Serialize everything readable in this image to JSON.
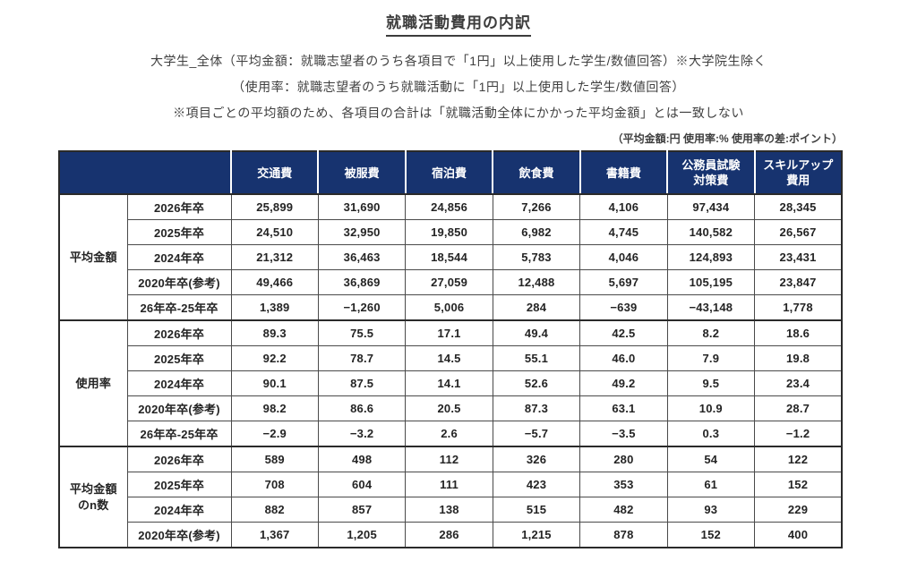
{
  "page": {
    "title": "就職活動費用の内訳",
    "subtitle_line1": "大学生_全体（平均金額：就職志望者のうち各項目で「1円」以上使用した学生/数値回答）※大学院生除く",
    "subtitle_line2": "（使用率：就職志望者のうち就職活動に「1円」以上使用した学生/数値回答）",
    "subtitle_line3": "※項目ごとの平均額のため、各項目の合計は「就職活動全体にかかった平均金額」とは一致しない",
    "units_note": "（平均金額:円  使用率:%  使用率の差:ポイント）"
  },
  "colors": {
    "header_bg": "#17336f",
    "header_text": "#ffffff",
    "outer_border": "#2a2a2a",
    "inner_border": "#4a4a4a"
  },
  "chart_data": {
    "type": "table",
    "columns": [
      "交通費",
      "被服費",
      "宿泊費",
      "飲食費",
      "書籍費",
      "公務員試験\n対策費",
      "スキルアップ\n費用"
    ],
    "row_groups": [
      {
        "label": "平均金額",
        "rows": [
          {
            "label": "2026年卒",
            "values": [
              "25,899",
              "31,690",
              "24,856",
              "7,266",
              "4,106",
              "97,434",
              "28,345"
            ]
          },
          {
            "label": "2025年卒",
            "values": [
              "24,510",
              "32,950",
              "19,850",
              "6,982",
              "4,745",
              "140,582",
              "26,567"
            ]
          },
          {
            "label": "2024年卒",
            "values": [
              "21,312",
              "36,463",
              "18,544",
              "5,783",
              "4,046",
              "124,893",
              "23,431"
            ]
          },
          {
            "label": "2020年卒(参考)",
            "values": [
              "49,466",
              "36,869",
              "27,059",
              "12,488",
              "5,697",
              "105,195",
              "23,847"
            ]
          },
          {
            "label": "26年卒-25年卒",
            "values": [
              "1,389",
              "−1,260",
              "5,006",
              "284",
              "−639",
              "−43,148",
              "1,778"
            ]
          }
        ]
      },
      {
        "label": "使用率",
        "rows": [
          {
            "label": "2026年卒",
            "values": [
              "89.3",
              "75.5",
              "17.1",
              "49.4",
              "42.5",
              "8.2",
              "18.6"
            ]
          },
          {
            "label": "2025年卒",
            "values": [
              "92.2",
              "78.7",
              "14.5",
              "55.1",
              "46.0",
              "7.9",
              "19.8"
            ]
          },
          {
            "label": "2024年卒",
            "values": [
              "90.1",
              "87.5",
              "14.1",
              "52.6",
              "49.2",
              "9.5",
              "23.4"
            ]
          },
          {
            "label": "2020年卒(参考)",
            "values": [
              "98.2",
              "86.6",
              "20.5",
              "87.3",
              "63.1",
              "10.9",
              "28.7"
            ]
          },
          {
            "label": "26年卒-25年卒",
            "values": [
              "−2.9",
              "−3.2",
              "2.6",
              "−5.7",
              "−3.5",
              "0.3",
              "−1.2"
            ]
          }
        ]
      },
      {
        "label": "平均金額\nのn数",
        "rows": [
          {
            "label": "2026年卒",
            "values": [
              "589",
              "498",
              "112",
              "326",
              "280",
              "54",
              "122"
            ]
          },
          {
            "label": "2025年卒",
            "values": [
              "708",
              "604",
              "111",
              "423",
              "353",
              "61",
              "152"
            ]
          },
          {
            "label": "2024年卒",
            "values": [
              "882",
              "857",
              "138",
              "515",
              "482",
              "93",
              "229"
            ]
          },
          {
            "label": "2020年卒(参考)",
            "values": [
              "1,367",
              "1,205",
              "286",
              "1,215",
              "878",
              "152",
              "400"
            ]
          }
        ]
      }
    ]
  }
}
